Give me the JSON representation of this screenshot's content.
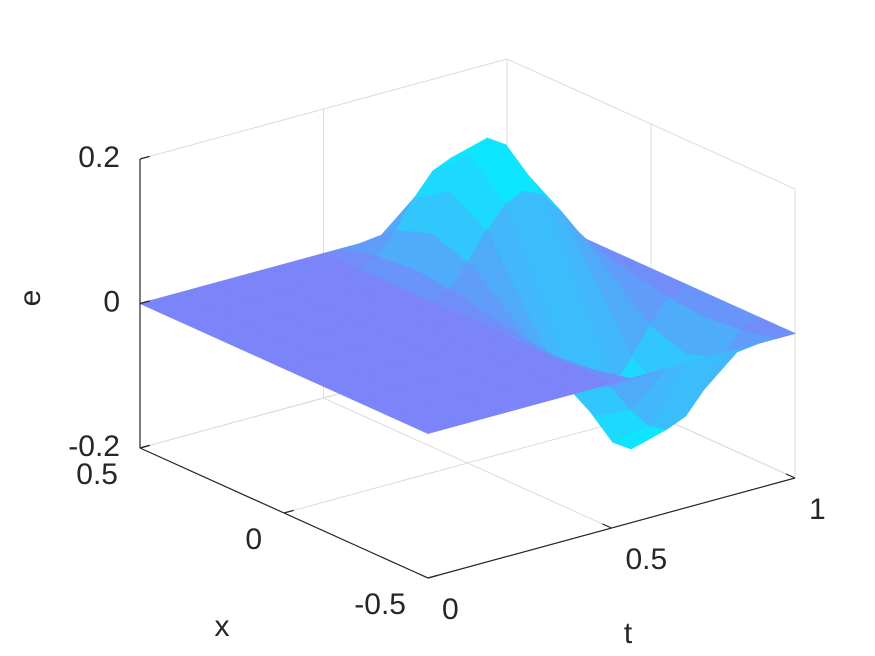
{
  "chart_data": {
    "type": "surface",
    "xlabel": "x",
    "ylabel": "t",
    "zlabel": "e",
    "xlim": [
      -0.5,
      0.5
    ],
    "ylim": [
      0,
      1
    ],
    "zlim": [
      -0.2,
      0.2
    ],
    "xticks": [
      -0.5,
      0,
      0.5
    ],
    "yticks": [
      0,
      0.5,
      1
    ],
    "zticks": [
      -0.2,
      0,
      0.2
    ],
    "grid": true,
    "color_range": [
      "#7b84f8",
      "#00f2ff"
    ],
    "x": [
      -0.5,
      -0.375,
      -0.25,
      -0.125,
      0,
      0.125,
      0.25,
      0.375,
      0.5
    ],
    "t": [
      0,
      0.1,
      0.2,
      0.3,
      0.4,
      0.5,
      0.55,
      0.6,
      0.65,
      0.7,
      0.75,
      0.8,
      0.85,
      0.9,
      0.95,
      1
    ],
    "values": [
      [
        0,
        0,
        0,
        0,
        0,
        0,
        0,
        0,
        0,
        0,
        0,
        0,
        0,
        0,
        0,
        0
      ],
      [
        0,
        0,
        0,
        0,
        0,
        0,
        -0.011,
        -0.042,
        -0.079,
        -0.109,
        -0.12,
        -0.109,
        -0.079,
        -0.042,
        -0.011,
        0
      ],
      [
        0,
        0,
        0,
        0,
        0,
        0,
        -0.016,
        -0.059,
        -0.111,
        -0.154,
        -0.17,
        -0.154,
        -0.111,
        -0.059,
        -0.016,
        0
      ],
      [
        0,
        0,
        0,
        0,
        0,
        0,
        -0.011,
        -0.042,
        -0.079,
        -0.109,
        -0.12,
        -0.109,
        -0.079,
        -0.042,
        -0.011,
        0
      ],
      [
        0,
        0,
        0,
        0,
        0,
        0,
        0,
        0,
        0,
        0,
        0,
        0,
        0,
        0,
        0,
        0
      ],
      [
        0,
        0,
        0,
        0,
        0,
        0,
        0.011,
        0.042,
        0.079,
        0.109,
        0.12,
        0.109,
        0.079,
        0.042,
        0.011,
        0
      ],
      [
        0,
        0,
        0,
        0,
        0,
        0,
        0.016,
        0.059,
        0.111,
        0.154,
        0.17,
        0.154,
        0.111,
        0.059,
        0.016,
        0
      ],
      [
        0,
        0,
        0,
        0,
        0,
        0,
        0.011,
        0.042,
        0.079,
        0.109,
        0.12,
        0.109,
        0.079,
        0.042,
        0.011,
        0
      ],
      [
        0,
        0,
        0,
        0,
        0,
        0,
        0,
        0,
        0,
        0,
        0,
        0,
        0,
        0,
        0,
        0
      ]
    ]
  }
}
